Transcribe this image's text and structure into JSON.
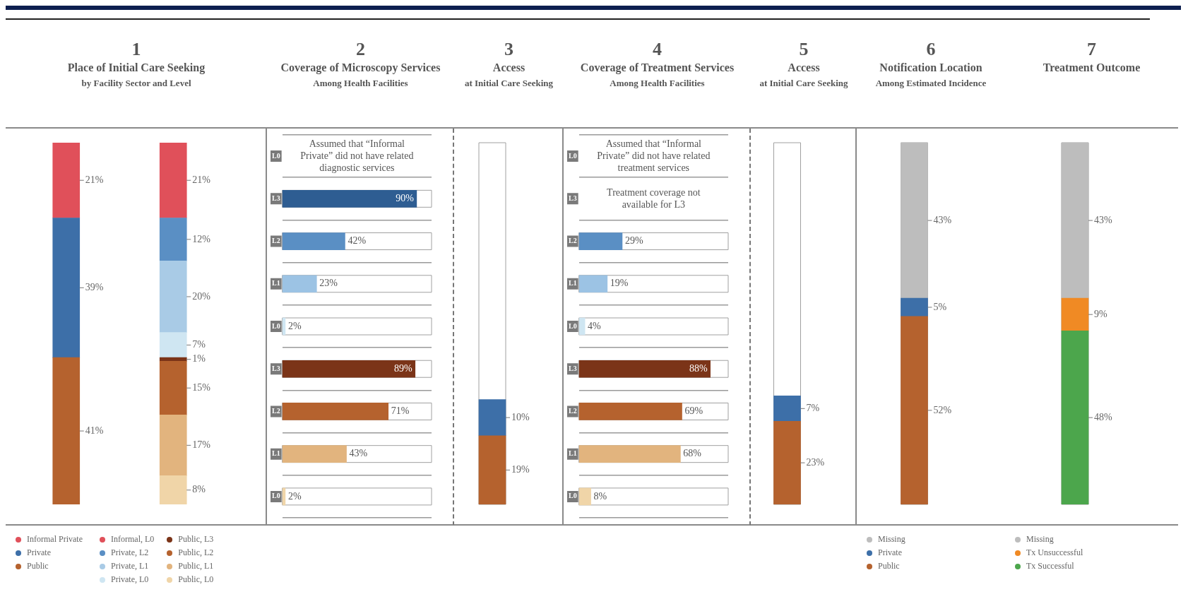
{
  "chart_data": [
    {
      "type": "bar",
      "title": "Place of Initial Care Seeking",
      "subtitle": "by Facility Sector and Level",
      "annotations": [
        "1"
      ],
      "categories": [
        null,
        null
      ],
      "stacked": true,
      "tick_labels": "x",
      "legend": "bottom",
      "series": [
        {
          "name": "Public",
          "color": "#b5622e",
          "values": [
            41,
            null
          ],
          "value_labels": [
            "41%",
            null
          ]
        },
        {
          "name": "Private",
          "color": "#3d6fa8",
          "values": [
            39,
            null
          ],
          "value_labels": [
            "39%",
            null
          ]
        },
        {
          "name": "Informal Private",
          "color": "#e0505a",
          "values": [
            21,
            null
          ],
          "value_labels": [
            "21%",
            null
          ]
        },
        {
          "name": "Public, L0",
          "color": "#f0d5a8",
          "values": [
            null,
            8
          ],
          "value_labels": [
            null,
            "8%"
          ]
        },
        {
          "name": "Public, L1",
          "color": "#e2b47e",
          "values": [
            null,
            17
          ],
          "value_labels": [
            null,
            "17%"
          ]
        },
        {
          "name": "Public, L2",
          "color": "#b5622e",
          "values": [
            null,
            15
          ],
          "value_labels": [
            null,
            "15%"
          ]
        },
        {
          "name": "Public, L3",
          "color": "#7b3418",
          "values": [
            null,
            1
          ],
          "value_labels": [
            null,
            "1%"
          ]
        },
        {
          "name": "Private, L0",
          "color": "#cfe6f2",
          "values": [
            null,
            7
          ],
          "value_labels": [
            null,
            "7%"
          ]
        },
        {
          "name": "Private, L1",
          "color": "#a9cbe6",
          "values": [
            null,
            20
          ],
          "value_labels": [
            null,
            "20%"
          ]
        },
        {
          "name": "Private, L2",
          "color": "#5a8fc4",
          "values": [
            null,
            12
          ],
          "value_labels": [
            null,
            "12%"
          ]
        },
        {
          "name": "Informal, L0",
          "color": "#e0505a",
          "values": [
            null,
            21
          ],
          "value_labels": [
            null,
            "21%"
          ]
        }
      ]
    },
    {
      "type": "bar",
      "orientation": "horizontal",
      "title": "Coverage of Microscopy Services",
      "subtitle": "Among Health Facilities",
      "annotations": [
        "2",
        "Assumed that “Informal Private” did not have related diagnostic services"
      ],
      "categories": [
        "L0",
        "L3",
        "L2",
        "L1",
        "L0",
        "L3",
        "L2",
        "L1",
        "L0"
      ],
      "values": [
        null,
        90,
        42,
        23,
        2,
        89,
        71,
        43,
        2
      ],
      "colors": [
        null,
        "#2e5d92",
        "#5a8fc4",
        "#9cc3e4",
        "#cfe6f2",
        "#7b3418",
        "#b5622e",
        "#e2b47e",
        "#f0d5a8"
      ],
      "value_labels": [
        null,
        "90%",
        "42%",
        "23%",
        "2%",
        "89%",
        "71%",
        "43%",
        "2%"
      ],
      "xlim": [
        0,
        100
      ],
      "tick_labels": "y",
      "grid": "y"
    },
    {
      "type": "bar",
      "title": "Access",
      "subtitle": "at Initial Care Seeking",
      "annotations": [
        "3"
      ],
      "categories": [
        null
      ],
      "stacked": true,
      "ylim": [
        0,
        100
      ],
      "tick_labels": "x",
      "series": [
        {
          "color": "#b5622e",
          "values": [
            19
          ],
          "value_labels": [
            "19%"
          ]
        },
        {
          "color": "#3d6fa8",
          "values": [
            10
          ],
          "value_labels": [
            "10%"
          ]
        }
      ]
    },
    {
      "type": "bar",
      "orientation": "horizontal",
      "title": "Coverage of Treatment Services",
      "subtitle": "Among Health Facilities",
      "annotations": [
        "4",
        "Assumed that “Informal Private” did not have related treatment services",
        "Treatment coverage not available for L3"
      ],
      "categories": [
        "L0",
        "L3",
        "L2",
        "L1",
        "L0",
        "L3",
        "L2",
        "L1",
        "L0"
      ],
      "values": [
        null,
        null,
        29,
        19,
        4,
        88,
        69,
        68,
        8
      ],
      "colors": [
        null,
        null,
        "#5a8fc4",
        "#9cc3e4",
        "#cfe6f2",
        "#7b3418",
        "#b5622e",
        "#e2b47e",
        "#f0d5a8"
      ],
      "value_labels": [
        null,
        null,
        "29%",
        "19%",
        "4%",
        "88%",
        "69%",
        "68%",
        "8%"
      ],
      "xlim": [
        0,
        100
      ],
      "tick_labels": "y",
      "grid": "y"
    },
    {
      "type": "bar",
      "title": "Access",
      "subtitle": "at Initial Care Seeking",
      "annotations": [
        "5"
      ],
      "categories": [
        null
      ],
      "stacked": true,
      "ylim": [
        0,
        100
      ],
      "tick_labels": "x",
      "series": [
        {
          "color": "#b5622e",
          "values": [
            23
          ],
          "value_labels": [
            "23%"
          ]
        },
        {
          "color": "#3d6fa8",
          "values": [
            7
          ],
          "value_labels": [
            "7%"
          ]
        }
      ]
    },
    {
      "type": "bar",
      "title": "Notification Location",
      "subtitle": "Among Estimated Incidence",
      "annotations": [
        "6"
      ],
      "categories": [
        null
      ],
      "stacked": true,
      "ylim": [
        0,
        100
      ],
      "tick_labels": "x",
      "legend": "bottom",
      "series": [
        {
          "name": "Public",
          "color": "#b5622e",
          "values": [
            52
          ],
          "value_labels": [
            "52%"
          ]
        },
        {
          "name": "Private",
          "color": "#3d6fa8",
          "values": [
            5
          ],
          "value_labels": [
            "5%"
          ]
        },
        {
          "name": "Missing",
          "color": "#bdbdbd",
          "values": [
            43
          ],
          "value_labels": [
            "43%"
          ]
        }
      ]
    },
    {
      "type": "bar",
      "title": "Treatment Outcome",
      "annotations": [
        "7"
      ],
      "categories": [
        null
      ],
      "stacked": true,
      "ylim": [
        0,
        100
      ],
      "tick_labels": "x",
      "legend": "bottom",
      "series": [
        {
          "name": "Tx Successful",
          "color": "#4ca64c",
          "values": [
            48
          ],
          "value_labels": [
            "48%"
          ]
        },
        {
          "name": "Tx Unsuccessful",
          "color": "#f08a24",
          "values": [
            9
          ],
          "value_labels": [
            "9%"
          ]
        },
        {
          "name": "Missing",
          "color": "#bdbdbd",
          "values": [
            43
          ],
          "value_labels": [
            "43%"
          ]
        }
      ]
    }
  ]
}
